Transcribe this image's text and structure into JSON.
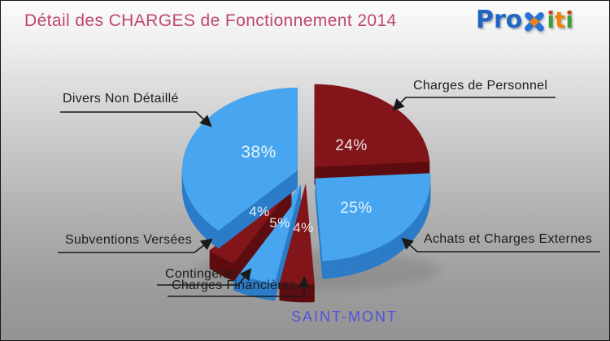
{
  "title": "Détail des CHARGES de Fonctionnement 2014",
  "logo": {
    "pro": "Pro",
    "i1": "i",
    "t": "t",
    "i2": "i"
  },
  "footer": {
    "commune": "SAINT-MONT"
  },
  "colors": {
    "title_pink": "#BF4672",
    "footer_blue": "#5253DC",
    "slice_blue": "#47A6EF",
    "slice_blue_side": "#2C7CC8",
    "slice_red": "#82151A",
    "slice_red_side": "#5D0D10",
    "label_ink": "#1C1C1C",
    "logo_blue": "#2166C4",
    "logo_green": "#3A9E3C",
    "logo_orange": "#EE8311"
  },
  "chart_data": {
    "type": "pie",
    "title": "Détail des CHARGES de Fonctionnement 2014",
    "commune": "SAINT-MONT",
    "unit": "percent",
    "style": "3d-exploded",
    "order": "clockwise from 12 o'clock",
    "slices": [
      {
        "label": "Charges de Personnel",
        "value": 24,
        "pct_label": "24%",
        "color": "#82151A",
        "side_color": "#5D0D10"
      },
      {
        "label": "Achats et Charges Externes",
        "value": 25,
        "pct_label": "25%",
        "color": "#47A6EF",
        "side_color": "#2C7CC8"
      },
      {
        "label": "Charges Financières",
        "value": 4,
        "pct_label": "4%",
        "color": "#82151A",
        "side_color": "#5D0D10"
      },
      {
        "label": "Contingents",
        "value": 5,
        "pct_label": "5%",
        "color": "#47A6EF",
        "side_color": "#2C7CC8"
      },
      {
        "label": "Subventions Versées",
        "value": 4,
        "pct_label": "4%",
        "color": "#82151A",
        "side_color": "#5D0D10"
      },
      {
        "label": "Divers Non Détaillé",
        "value": 38,
        "pct_label": "38%",
        "color": "#47A6EF",
        "side_color": "#2C7CC8"
      }
    ]
  }
}
